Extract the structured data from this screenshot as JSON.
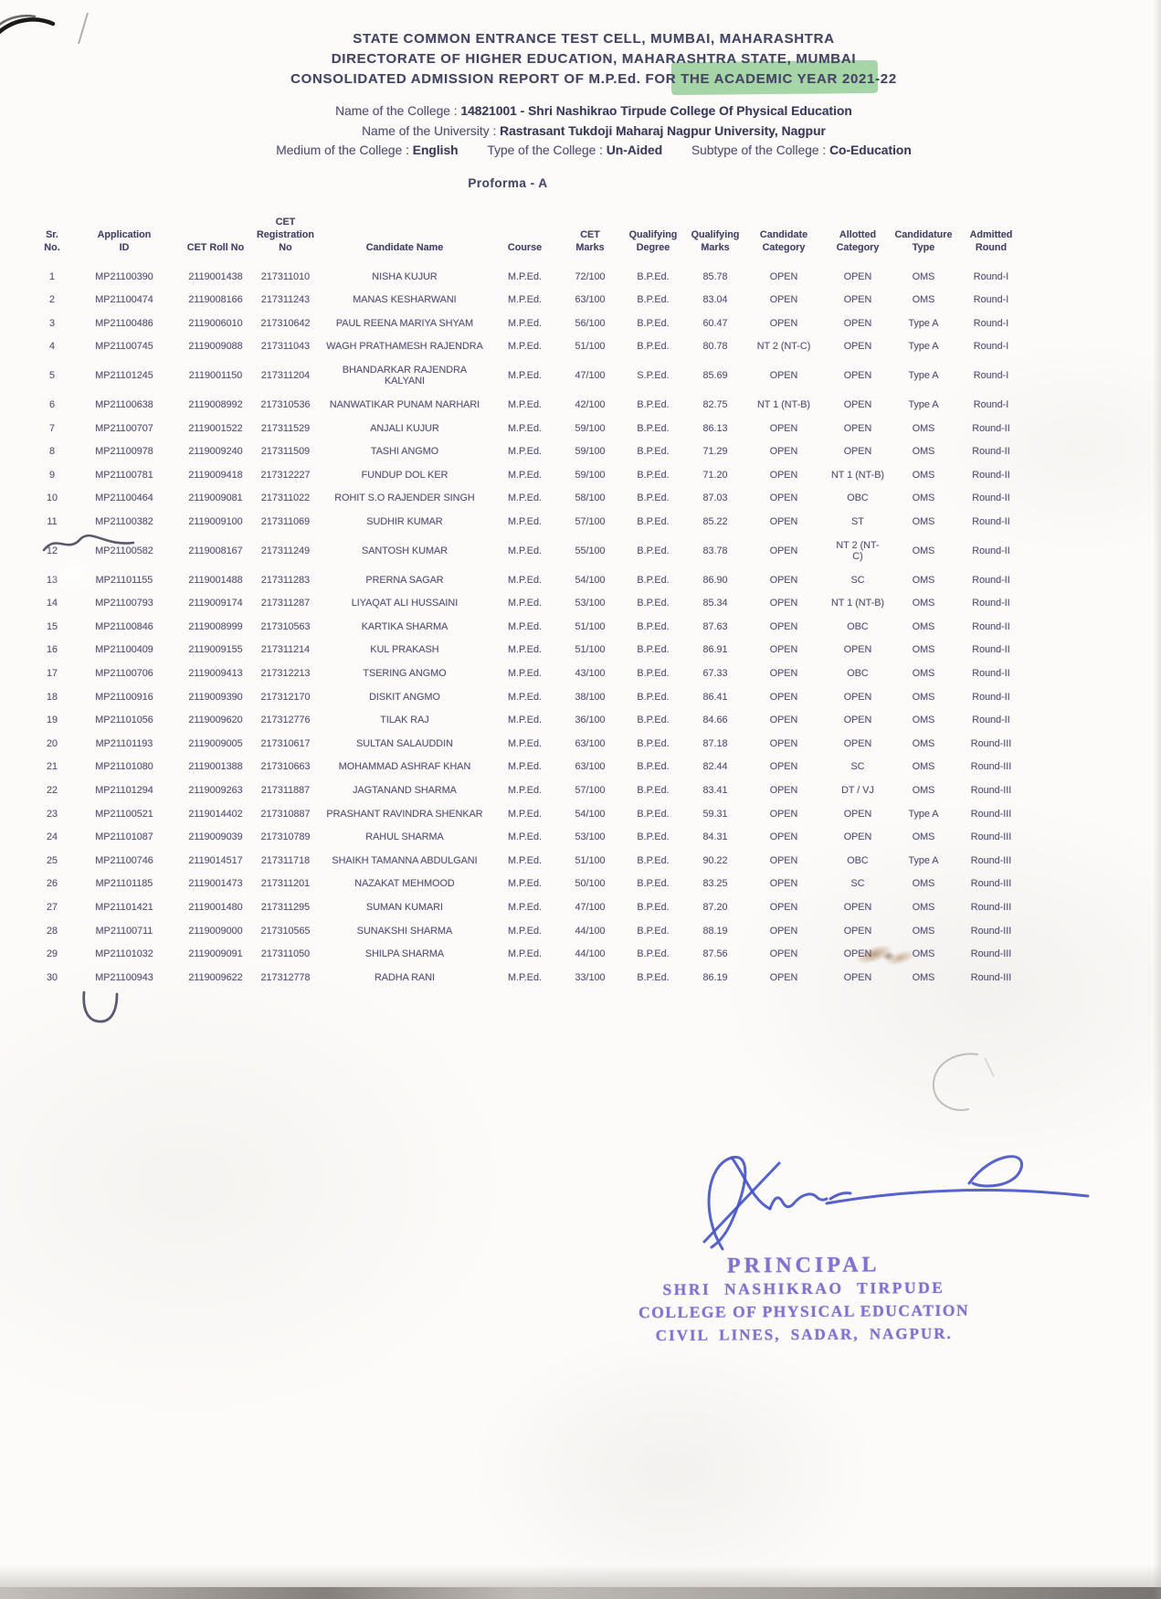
{
  "header": {
    "line1": "STATE COMMON ENTRANCE TEST CELL, MUMBAI, MAHARASHTRA",
    "line2": "DIRECTORATE OF HIGHER EDUCATION, MAHARASHTRA STATE, MUMBAI",
    "line3": "CONSOLIDATED ADMISSION REPORT OF M.P.Ed. FOR THE ACADEMIC YEAR 2021-22"
  },
  "college_info": {
    "college_label": "Name of the College : ",
    "college_value": "14821001 - Shri Nashikrao Tirpude College Of Physical Education",
    "university_label": "Name of the University : ",
    "university_value": "Rastrasant Tukdoji Maharaj Nagpur University, Nagpur",
    "medium_label": "Medium of the College : ",
    "medium_value": "English",
    "type_label": "Type of the College : ",
    "type_value": "Un-Aided",
    "subtype_label": "Subtype of the College : ",
    "subtype_value": "Co-Education"
  },
  "proforma_label": "Proforma - A",
  "table": {
    "keys": [
      "sr_no",
      "application_id",
      "cet_roll_no",
      "cet_registration_no",
      "candidate_name",
      "course",
      "cet_marks",
      "qualifying_degree",
      "qualifying_marks",
      "candidate_category",
      "allotted_category",
      "candidature_type",
      "admitted_round"
    ],
    "columns": [
      "Sr.\nNo.",
      "Application\nID",
      "CET Roll No",
      "CET\nRegistration\nNo",
      "Candidate Name",
      "Course",
      "CET\nMarks",
      "Qualifying\nDegree",
      "Qualifying\nMarks",
      "Candidate\nCategory",
      "Allotted\nCategory",
      "Candidature\nType",
      "Admitted\nRound"
    ],
    "rows": [
      [
        "1",
        "MP21100390",
        "2119001438",
        "217311010",
        "NISHA KUJUR",
        "M.P.Ed.",
        "72/100",
        "B.P.Ed.",
        "85.78",
        "OPEN",
        "OPEN",
        "OMS",
        "Round-I"
      ],
      [
        "2",
        "MP21100474",
        "2119008166",
        "217311243",
        "MANAS KESHARWANI",
        "M.P.Ed.",
        "63/100",
        "B.P.Ed.",
        "83.04",
        "OPEN",
        "OPEN",
        "OMS",
        "Round-I"
      ],
      [
        "3",
        "MP21100486",
        "2119006010",
        "217310642",
        "PAUL REENA MARIYA SHYAM",
        "M.P.Ed.",
        "56/100",
        "B.P.Ed.",
        "60.47",
        "OPEN",
        "OPEN",
        "Type A",
        "Round-I"
      ],
      [
        "4",
        "MP21100745",
        "2119009088",
        "217311043",
        "WAGH PRATHAMESH RAJENDRA",
        "M.P.Ed.",
        "51/100",
        "B.P.Ed.",
        "80.78",
        "NT 2 (NT-C)",
        "OPEN",
        "Type A",
        "Round-I"
      ],
      [
        "5",
        "MP21101245",
        "2119001150",
        "217311204",
        "BHANDARKAR RAJENDRA KALYANI",
        "M.P.Ed.",
        "47/100",
        "S.P.Ed.",
        "85.69",
        "OPEN",
        "OPEN",
        "Type A",
        "Round-I"
      ],
      [
        "6",
        "MP21100638",
        "2119008992",
        "217310536",
        "NANWATIKAR PUNAM NARHARI",
        "M.P.Ed.",
        "42/100",
        "B.P.Ed.",
        "82.75",
        "NT 1 (NT-B)",
        "OPEN",
        "Type A",
        "Round-I"
      ],
      [
        "7",
        "MP21100707",
        "2119001522",
        "217311529",
        "ANJALI KUJUR",
        "M.P.Ed.",
        "59/100",
        "B.P.Ed.",
        "86.13",
        "OPEN",
        "OPEN",
        "OMS",
        "Round-II"
      ],
      [
        "8",
        "MP21100978",
        "2119009240",
        "217311509",
        "TASHI ANGMO",
        "M.P.Ed.",
        "59/100",
        "B.P.Ed.",
        "71.29",
        "OPEN",
        "OPEN",
        "OMS",
        "Round-II"
      ],
      [
        "9",
        "MP21100781",
        "2119009418",
        "217312227",
        "FUNDUP DOL KER",
        "M.P.Ed.",
        "59/100",
        "B.P.Ed.",
        "71.20",
        "OPEN",
        "NT 1 (NT-B)",
        "OMS",
        "Round-II"
      ],
      [
        "10",
        "MP21100464",
        "2119009081",
        "217311022",
        "ROHIT S.O RAJENDER SINGH",
        "M.P.Ed.",
        "58/100",
        "B.P.Ed.",
        "87.03",
        "OPEN",
        "OBC",
        "OMS",
        "Round-II"
      ],
      [
        "11",
        "MP21100382",
        "2119009100",
        "217311069",
        "SUDHIR KUMAR",
        "M.P.Ed.",
        "57/100",
        "B.P.Ed.",
        "85.22",
        "OPEN",
        "ST",
        "OMS",
        "Round-II"
      ],
      [
        "12",
        "MP21100582",
        "2119008167",
        "217311249",
        "SANTOSH KUMAR",
        "M.P.Ed.",
        "55/100",
        "B.P.Ed.",
        "83.78",
        "OPEN",
        "NT 2 (NT-\nC)",
        "OMS",
        "Round-II"
      ],
      [
        "13",
        "MP21101155",
        "2119001488",
        "217311283",
        "PRERNA SAGAR",
        "M.P.Ed.",
        "54/100",
        "B.P.Ed.",
        "86.90",
        "OPEN",
        "SC",
        "OMS",
        "Round-II"
      ],
      [
        "14",
        "MP21100793",
        "2119009174",
        "217311287",
        "LIYAQAT ALI HUSSAINI",
        "M.P.Ed.",
        "53/100",
        "B.P.Ed.",
        "85.34",
        "OPEN",
        "NT 1 (NT-B)",
        "OMS",
        "Round-II"
      ],
      [
        "15",
        "MP21100846",
        "2119008999",
        "217310563",
        "KARTIKA SHARMA",
        "M.P.Ed.",
        "51/100",
        "B.P.Ed.",
        "87.63",
        "OPEN",
        "OBC",
        "OMS",
        "Round-II"
      ],
      [
        "16",
        "MP21100409",
        "2119009155",
        "217311214",
        "KUL PRAKASH",
        "M.P.Ed.",
        "51/100",
        "B.P.Ed.",
        "86.91",
        "OPEN",
        "OPEN",
        "OMS",
        "Round-II"
      ],
      [
        "17",
        "MP21100706",
        "2119009413",
        "217312213",
        "TSERING ANGMO",
        "M.P.Ed.",
        "43/100",
        "B.P.Ed.",
        "67.33",
        "OPEN",
        "OBC",
        "OMS",
        "Round-II"
      ],
      [
        "18",
        "MP21100916",
        "2119009390",
        "217312170",
        "DISKIT ANGMO",
        "M.P.Ed.",
        "38/100",
        "B.P.Ed.",
        "86.41",
        "OPEN",
        "OPEN",
        "OMS",
        "Round-II"
      ],
      [
        "19",
        "MP21101056",
        "2119009620",
        "217312776",
        "TILAK RAJ",
        "M.P.Ed.",
        "36/100",
        "B.P.Ed.",
        "84.66",
        "OPEN",
        "OPEN",
        "OMS",
        "Round-II"
      ],
      [
        "20",
        "MP21101193",
        "2119009005",
        "217310617",
        "SULTAN SALAUDDIN",
        "M.P.Ed.",
        "63/100",
        "B.P.Ed.",
        "87.18",
        "OPEN",
        "OPEN",
        "OMS",
        "Round-III"
      ],
      [
        "21",
        "MP21101080",
        "2119001388",
        "217310663",
        "MOHAMMAD ASHRAF KHAN",
        "M.P.Ed.",
        "63/100",
        "B.P.Ed.",
        "82.44",
        "OPEN",
        "SC",
        "OMS",
        "Round-III"
      ],
      [
        "22",
        "MP21101294",
        "2119009263",
        "217311887",
        "JAGTANAND SHARMA",
        "M.P.Ed.",
        "57/100",
        "B.P.Ed.",
        "83.41",
        "OPEN",
        "DT / VJ",
        "OMS",
        "Round-III"
      ],
      [
        "23",
        "MP21100521",
        "2119014402",
        "217310887",
        "PRASHANT RAVINDRA SHENKAR",
        "M.P.Ed.",
        "54/100",
        "B.P.Ed.",
        "59.31",
        "OPEN",
        "OPEN",
        "Type A",
        "Round-III"
      ],
      [
        "24",
        "MP21101087",
        "2119009039",
        "217310789",
        "RAHUL SHARMA",
        "M.P.Ed.",
        "53/100",
        "B.P.Ed.",
        "84.31",
        "OPEN",
        "OPEN",
        "OMS",
        "Round-III"
      ],
      [
        "25",
        "MP21100746",
        "2119014517",
        "217311718",
        "SHAIKH TAMANNA ABDULGANI",
        "M.P.Ed.",
        "51/100",
        "B.P.Ed.",
        "90.22",
        "OPEN",
        "OBC",
        "Type A",
        "Round-III"
      ],
      [
        "26",
        "MP21101185",
        "2119001473",
        "217311201",
        "NAZAKAT MEHMOOD",
        "M.P.Ed.",
        "50/100",
        "B.P.Ed.",
        "83.25",
        "OPEN",
        "SC",
        "OMS",
        "Round-III"
      ],
      [
        "27",
        "MP21101421",
        "2119001480",
        "217311295",
        "SUMAN KUMARI",
        "M.P.Ed.",
        "47/100",
        "B.P.Ed.",
        "87.20",
        "OPEN",
        "OPEN",
        "OMS",
        "Round-III"
      ],
      [
        "28",
        "MP21100711",
        "2119009000",
        "217310565",
        "SUNAKSHI SHARMA",
        "M.P.Ed.",
        "44/100",
        "B.P.Ed.",
        "88.19",
        "OPEN",
        "OPEN",
        "OMS",
        "Round-III"
      ],
      [
        "29",
        "MP21101032",
        "2119009091",
        "217311050",
        "SHILPA SHARMA",
        "M.P.Ed.",
        "44/100",
        "B.P.Ed.",
        "87.56",
        "OPEN",
        "OPEN",
        "OMS",
        "Round-III"
      ],
      [
        "30",
        "MP21100943",
        "2119009622",
        "217312778",
        "RADHA RANI",
        "M.P.Ed.",
        "33/100",
        "B.P.Ed.",
        "86.19",
        "OPEN",
        "OPEN",
        "OMS",
        "Round-III"
      ]
    ]
  },
  "stamp": {
    "line1": "PRINCIPAL",
    "line2": "SHRI NASHIKRAO TIRPUDE",
    "line3": "COLLEGE OF PHYSICAL EDUCATION",
    "line4": "CIVIL LINES, SADAR, NAGPUR."
  },
  "colors": {
    "highlight_green": "#85c887",
    "stamp_ink": "#8173cc",
    "signature_ink": "#4551c5",
    "header_text": "#454661",
    "table_text": "#575772"
  }
}
